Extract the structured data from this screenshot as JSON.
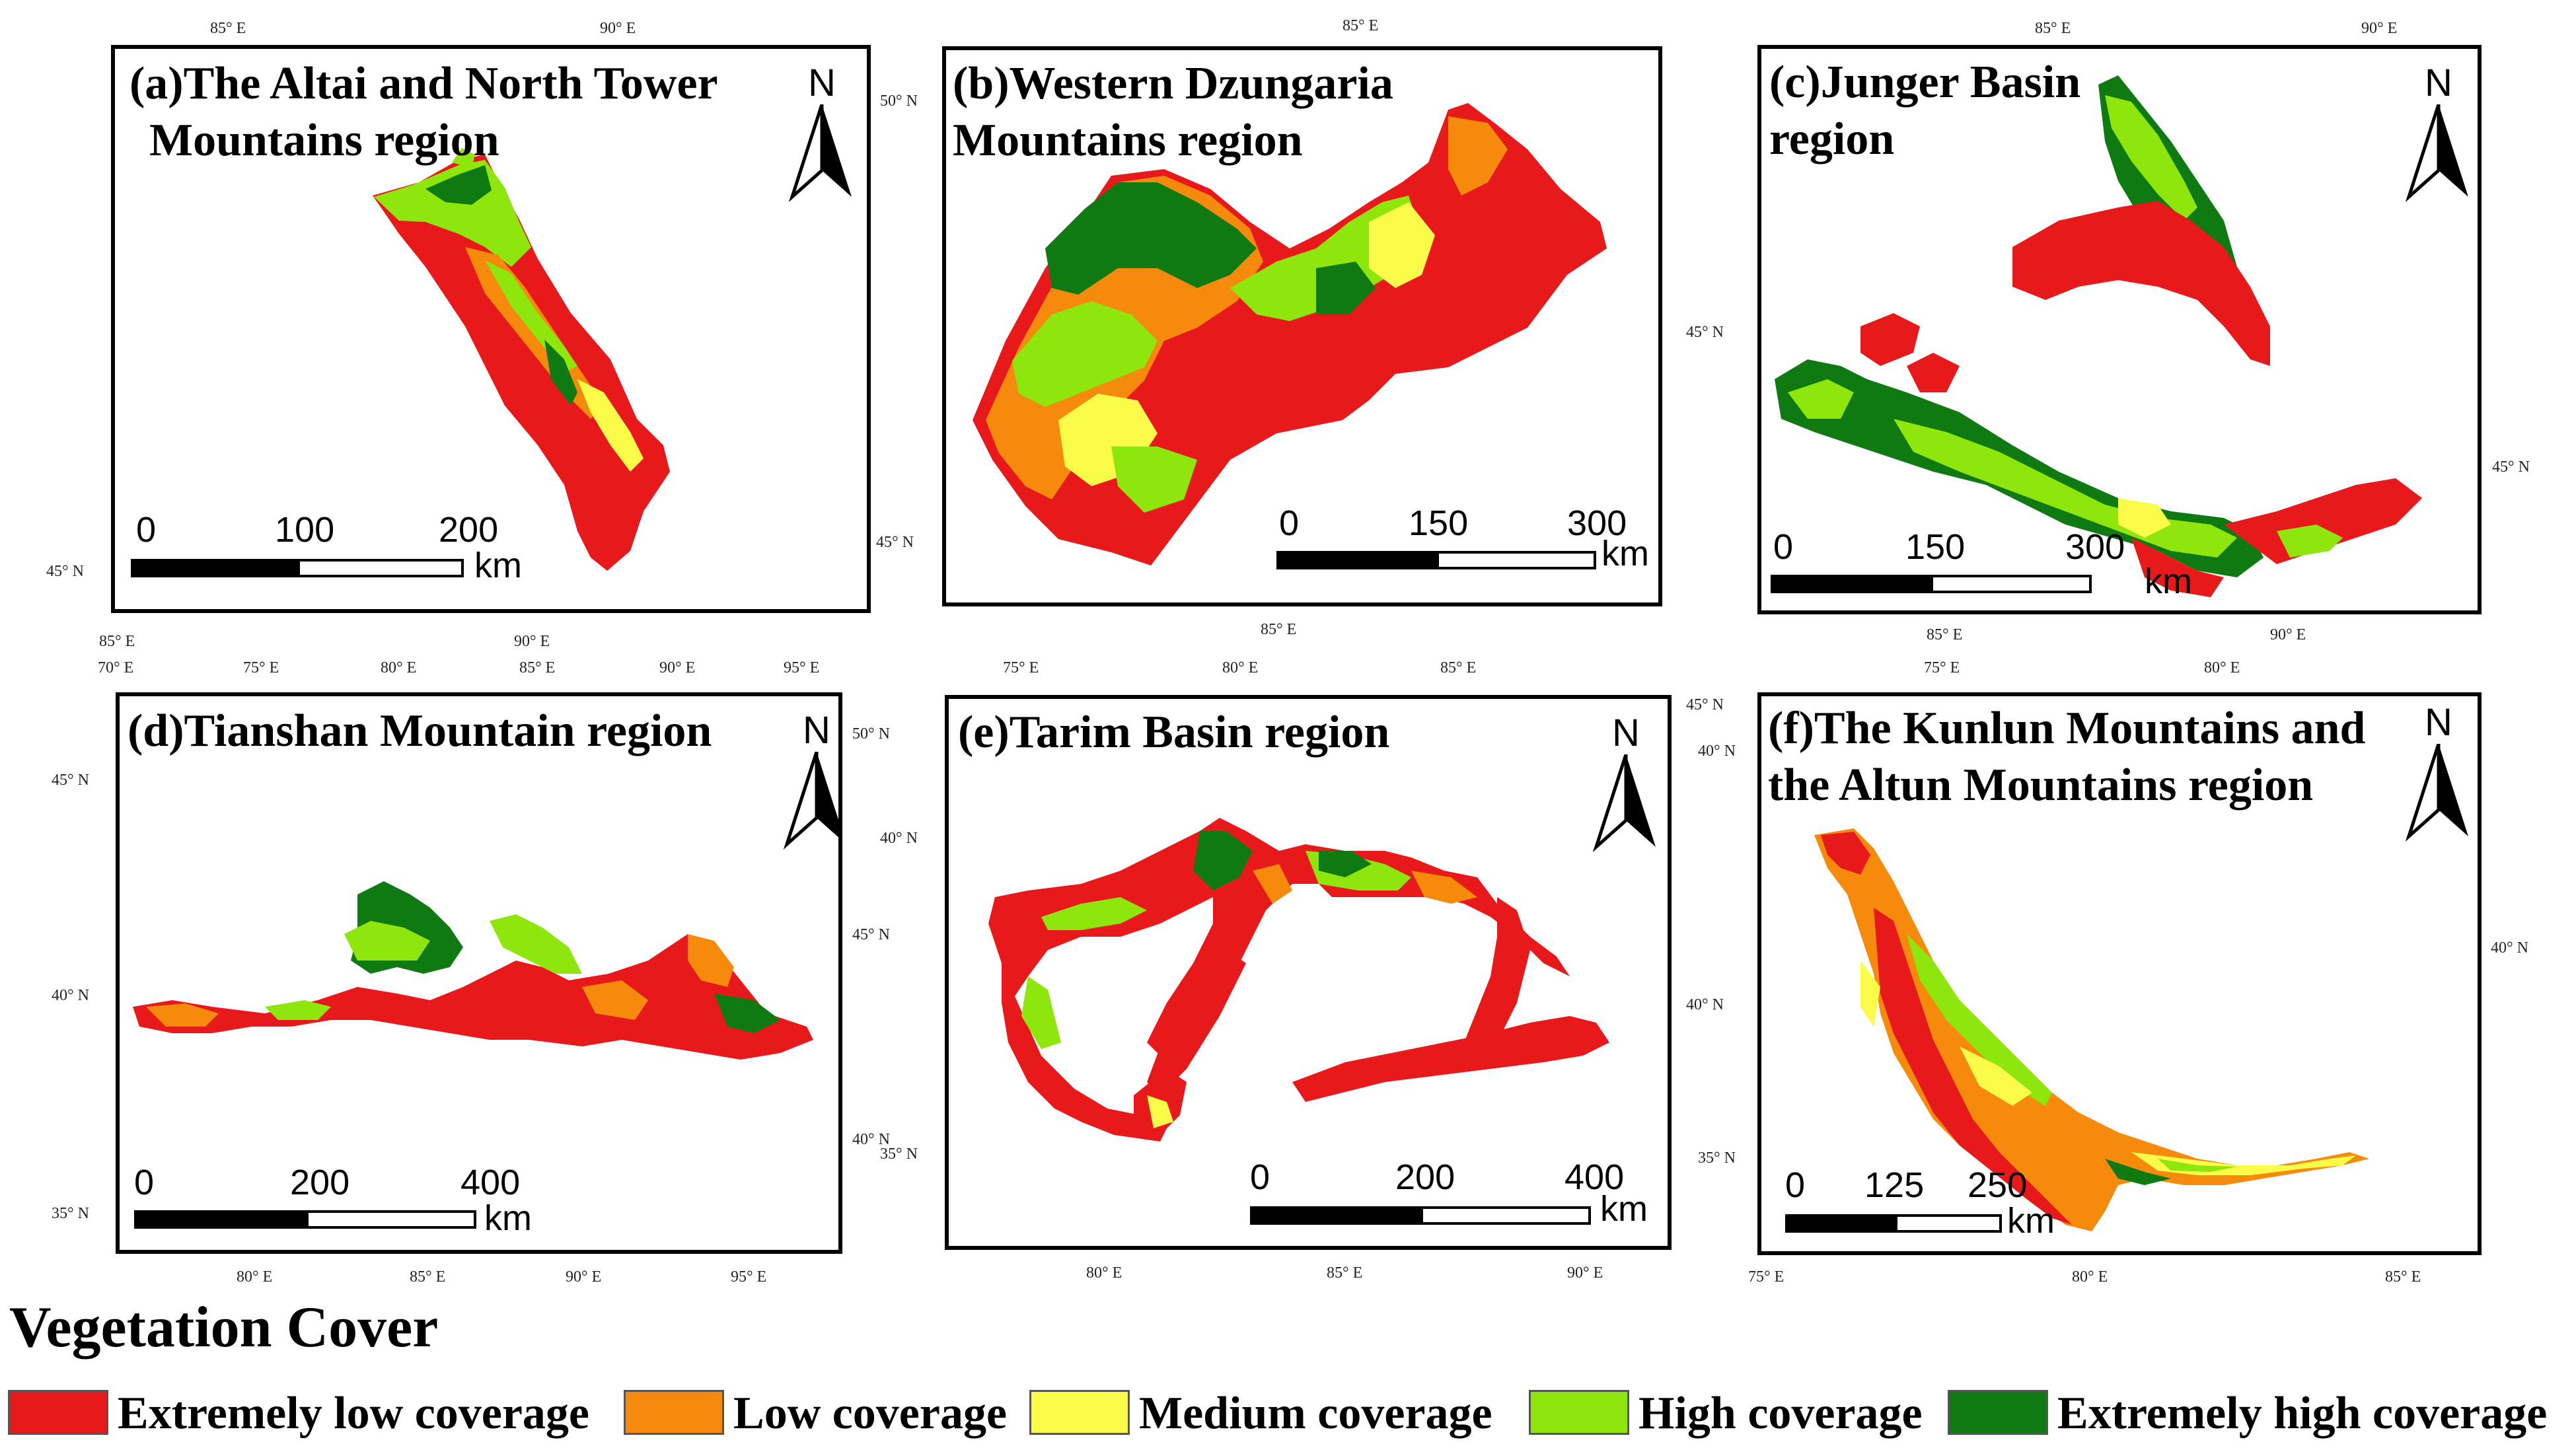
{
  "panels": [
    {
      "id": "a",
      "title_line1": "(a)The Altai and North Tower",
      "title_line2": "Mountains region",
      "north": "N",
      "scale": [
        "0",
        "100",
        "200"
      ],
      "unit": "km",
      "ticks_top": [
        "85° E",
        "90° E"
      ],
      "ticks_bottom": [
        "85° E",
        "90° E"
      ],
      "ticks_left": [
        "45° N"
      ],
      "ticks_right": [
        "50° N"
      ]
    },
    {
      "id": "b",
      "title_line1": "(b)Western Dzungaria",
      "title_line2": "Mountains region",
      "north": "N",
      "scale": [
        "0",
        "150",
        "300"
      ],
      "unit": "km",
      "ticks_top": [
        "85° E"
      ],
      "ticks_bottom": [
        "85° E"
      ],
      "ticks_left": [
        "45° N"
      ]
    },
    {
      "id": "c",
      "title_line1": "(c)Junger Basin",
      "title_line2": "region",
      "north": "N",
      "scale": [
        "0",
        "150",
        "300"
      ],
      "unit": "km",
      "ticks_top": [
        "85° E",
        "90° E"
      ],
      "ticks_bottom": [
        "85° E",
        "90° E"
      ],
      "ticks_left": [
        "45° N"
      ],
      "ticks_right": [
        "45° N"
      ]
    },
    {
      "id": "d",
      "title_line1": "(d)Tianshan Mountain region",
      "title_line2": "",
      "north": "N",
      "scale": [
        "0",
        "200",
        "400"
      ],
      "unit": "km",
      "ticks_top": [
        "70° E",
        "75° E",
        "80° E",
        "85° E",
        "90° E",
        "95° E"
      ],
      "ticks_bottom": [
        "80° E",
        "85° E",
        "90° E",
        "95° E"
      ],
      "ticks_left": [
        "45° N",
        "40° N",
        "35° N"
      ],
      "ticks_right": [
        "50° N",
        "45° N",
        "40° N"
      ]
    },
    {
      "id": "e",
      "title_line1": "(e)Tarim Basin region",
      "title_line2": "",
      "north": "N",
      "scale": [
        "0",
        "200",
        "400"
      ],
      "unit": "km",
      "ticks_top": [
        "75° E",
        "80° E",
        "85° E"
      ],
      "ticks_bottom": [
        "80° E",
        "85° E",
        "90° E"
      ],
      "ticks_left": [
        "40° N",
        "35° N"
      ],
      "ticks_right": [
        "45° N",
        "40° N"
      ]
    },
    {
      "id": "f",
      "title_line1": "(f)The Kunlun Mountains and",
      "title_line2": "the Altun Mountains region",
      "north": "N",
      "scale": [
        "0",
        "125",
        "250"
      ],
      "unit": "km",
      "ticks_top": [
        "75° E",
        "80° E"
      ],
      "ticks_bottom": [
        "75° E",
        "80° E",
        "85° E"
      ],
      "ticks_left": [
        "40° N",
        "35° N"
      ],
      "ticks_right": [
        "40° N"
      ]
    }
  ],
  "legend": {
    "title": "Vegetation Cover",
    "items": [
      {
        "label": "Extremely low coverage",
        "color": "#e8191b"
      },
      {
        "label": "Low coverage",
        "color": "#f58a0c"
      },
      {
        "label": "Medium coverage",
        "color": "#fbfb4a"
      },
      {
        "label": "High coverage",
        "color": "#8ee60c"
      },
      {
        "label": "Extremely high coverage",
        "color": "#0f7a12"
      }
    ]
  }
}
